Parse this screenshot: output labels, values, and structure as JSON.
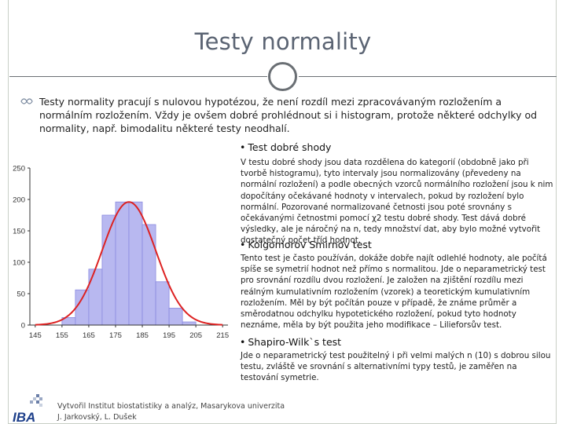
{
  "slide": {
    "title": "Testy normality",
    "intro": "Testy normality pracují s nulovou hypotézou, že není rozdíl mezi zpracovávaným rozložením a normálním rozložením. Vždy je ovšem dobré prohlédnout si i histogram, protože některé odchylky od normality, např. bimodalitu některé testy neodhalí."
  },
  "sections": [
    {
      "heading": "Test dobré shody",
      "text": "V testu dobré shody jsou data rozdělena do kategorií (obdobně jako při tvorbě histogramu), tyto intervaly jsou normalizovány (převedeny na normální rozložení) a podle obecných vzorců normálního rozložení jsou k nim dopočítány očekávané hodnoty v intervalech, pokud by rozložení bylo normální. Pozorované normalizované četnosti jsou poté srovnány s očekávanými četnostmi pomocí χ2 testu dobré shody. Test dává dobré výsledky, ale je náročný na n, tedy množství dat, aby bylo možné vytvořit dostatečný počet tříd hodnot."
    },
    {
      "heading": "Kolgomorov Smirnov test",
      "text": "Tento test je často používán, dokáže dobře najít odlehlé hodnoty, ale počítá spíše se symetrií hodnot než přímo s normalitou. Jde o neparametrický test pro srovnání rozdílu dvou rozložení. Je založen na zjištění rozdílu mezi reálným kumulativním rozložením (vzorek) a teoretickým kumulativním rozložením. Měl by být počítán pouze v případě, že známe průměr a směrodatnou odchylku hypotetického rozložení, pokud tyto hodnoty neznáme, měla by být použita jeho modifikace – Lilieforsův test."
    },
    {
      "heading": "Shapiro-Wilk`s test",
      "text": "Jde o neparametrický test použitelný i při velmi malých n (10) s dobrou silou testu, zvláště ve srovnání s alternativními typy testů, je zaměřen na testování symetrie."
    }
  ],
  "footer": {
    "line1": "Vytvořil Institut biostatistiky a analýz, Masarykova univerzita",
    "line2": "J. Jarkovský, L. Dušek",
    "logo_text": "IBA"
  },
  "chart_data": {
    "type": "bar",
    "title": "",
    "xlabel": "",
    "ylabel": "",
    "x_ticks": [
      "145",
      "155",
      "165",
      "175",
      "185",
      "195",
      "205",
      "215"
    ],
    "y_ticks": [
      "0",
      "50",
      "100",
      "150",
      "200",
      "250"
    ],
    "ylim": [
      0,
      250
    ],
    "xlim": [
      143,
      217
    ],
    "bins": [
      {
        "from": 155,
        "to": 160,
        "value": 12
      },
      {
        "from": 160,
        "to": 165,
        "value": 56
      },
      {
        "from": 165,
        "to": 170,
        "value": 89
      },
      {
        "from": 170,
        "to": 175,
        "value": 175
      },
      {
        "from": 175,
        "to": 180,
        "value": 196
      },
      {
        "from": 180,
        "to": 185,
        "value": 196
      },
      {
        "from": 185,
        "to": 190,
        "value": 160
      },
      {
        "from": 190,
        "to": 195,
        "value": 69
      },
      {
        "from": 195,
        "to": 200,
        "value": 27
      },
      {
        "from": 200,
        "to": 205,
        "value": 5
      }
    ],
    "normal_curve": {
      "mean": 180,
      "sd": 10,
      "peak": 196
    },
    "colors": {
      "bar_fill": "#b8b8f0",
      "bar_stroke": "#8a8ae0",
      "curve": "#dd2222",
      "axis": "#333333"
    },
    "grid": false
  }
}
